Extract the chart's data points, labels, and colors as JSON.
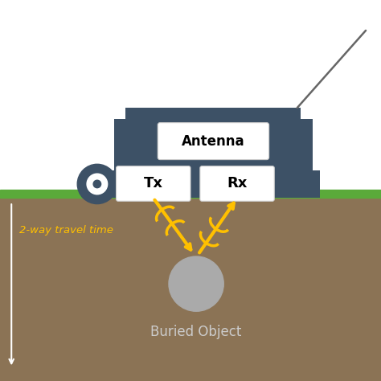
{
  "bg_color": "#ffffff",
  "ground_color": "#8B7355",
  "grass_color": "#5aaa3a",
  "device_body_color": "#3D5166",
  "tx_rx_box_color": "#ffffff",
  "buried_obj_color": "#aaaaaa",
  "signal_color": "#FFC000",
  "text_2way": "2-way travel time",
  "text_buried": "Buried Object",
  "text_antenna": "Antenna",
  "text_tx": "Tx",
  "text_rx": "Rx",
  "fig_width": 4.74,
  "fig_height": 4.74,
  "dpi": 100
}
